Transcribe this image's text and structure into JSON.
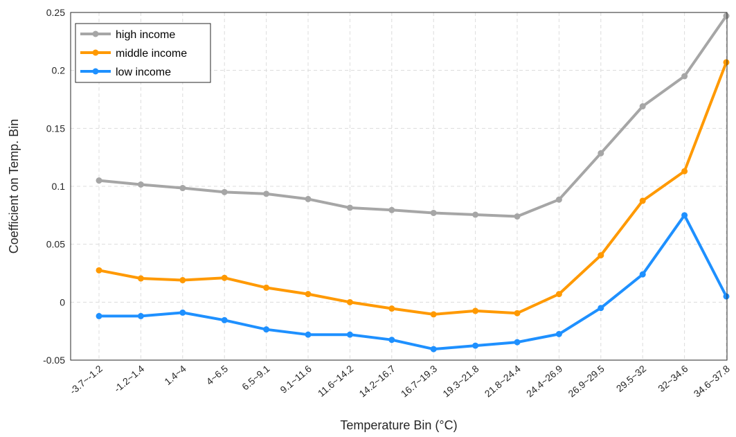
{
  "chart_data": {
    "type": "line",
    "xlabel": "Temperature Bin (°C)",
    "ylabel": "Coefficient on Temp. Bin",
    "categories": [
      "-3.7~-1.2",
      "-1.2~1.4",
      "1.4~4",
      "4~6.5",
      "6.5~9.1",
      "9.1~11.6",
      "11.6~14.2",
      "14.2~16.7",
      "16.7~19.3",
      "19.3~21.8",
      "21.8~24.4",
      "24.4~26.9",
      "26.9~29.5",
      "29.5~32",
      "32~34.6",
      "34.6~37.8"
    ],
    "ylim": [
      -0.05,
      0.25
    ],
    "yticks": [
      -0.05,
      0,
      0.05,
      0.1,
      0.15,
      0.2,
      0.25
    ],
    "ytick_labels": [
      "-0.05",
      "0",
      "0.05",
      "0.1",
      "0.15",
      "0.2",
      "0.25"
    ],
    "grid": true,
    "legend_position": "top-left",
    "series": [
      {
        "name": "high income",
        "color": "#a6a6a6",
        "values": [
          0.105,
          0.1015,
          0.0985,
          0.095,
          0.0935,
          0.089,
          0.0815,
          0.0795,
          0.077,
          0.0755,
          0.074,
          0.0885,
          0.1285,
          0.169,
          0.195,
          0.247
        ]
      },
      {
        "name": "middle income",
        "color": "#ff9900",
        "values": [
          0.0275,
          0.0205,
          0.019,
          0.021,
          0.0125,
          0.007,
          0.0,
          -0.0055,
          -0.0105,
          -0.0075,
          -0.0095,
          0.007,
          0.0405,
          0.0875,
          0.113,
          0.207
        ]
      },
      {
        "name": "low income",
        "color": "#1e90ff",
        "values": [
          -0.012,
          -0.012,
          -0.009,
          -0.0155,
          -0.0235,
          -0.028,
          -0.028,
          -0.0325,
          -0.0405,
          -0.0375,
          -0.0345,
          -0.0275,
          -0.005,
          0.024,
          0.075,
          0.005
        ]
      }
    ]
  }
}
